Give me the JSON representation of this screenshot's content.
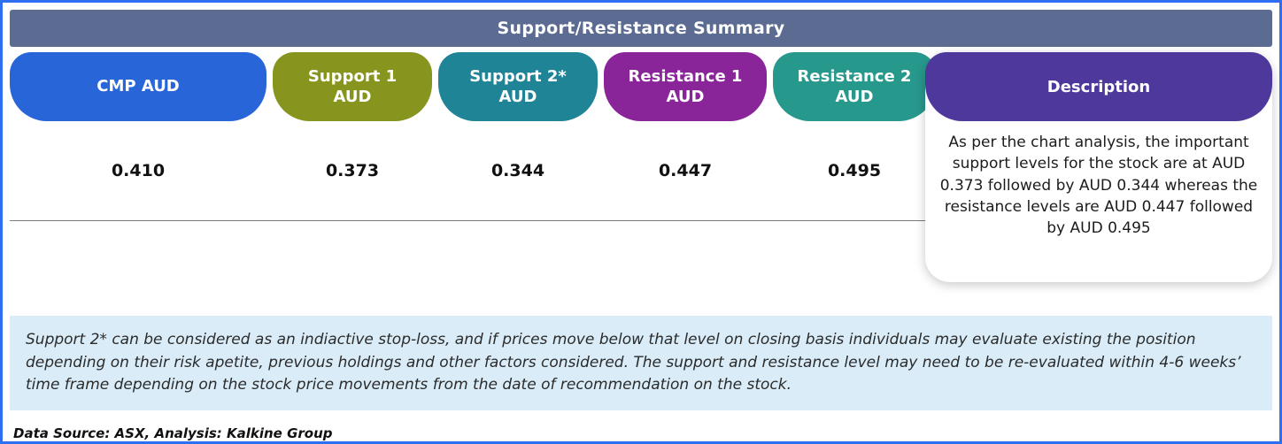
{
  "frame": {
    "border_color": "#2e6ef2"
  },
  "header": {
    "title": "Support/Resistance Summary",
    "bg": "#5b6b92"
  },
  "table": {
    "columns": [
      {
        "label": "CMP AUD",
        "sublabel": "",
        "value": "0.410",
        "color": "#2765d8"
      },
      {
        "label": "Support 1",
        "sublabel": "AUD",
        "value": "0.373",
        "color": "#87951e"
      },
      {
        "label": "Support 2*",
        "sublabel": "AUD",
        "value": "0.344",
        "color": "#1f8495"
      },
      {
        "label": "Resistance 1",
        "sublabel": "AUD",
        "value": "0.447",
        "color": "#8a2499"
      },
      {
        "label": "Resistance 2",
        "sublabel": "AUD",
        "value": "0.495",
        "color": "#27988c"
      }
    ],
    "description": {
      "label": "Description",
      "color": "#4f389c",
      "text": "As per the chart analysis, the important support levels for the stock are at AUD 0.373 followed by AUD 0.344 whereas the resistance levels are AUD 0.447 followed by AUD 0.495"
    }
  },
  "note": {
    "bg": "#d9ecf8",
    "text": "Support 2* can be considered as an indiactive stop-loss, and if prices move below that level on closing basis individuals may evaluate existing the position depending on their risk apetite, previous holdings and other factors considered. The support and resistance level may need to be re-evaluated within 4-6 weeks’ time frame depending on the stock price movements from  the date of recommendation on the stock."
  },
  "source": {
    "text": "Data Source: ASX, Analysis: Kalkine Group"
  }
}
